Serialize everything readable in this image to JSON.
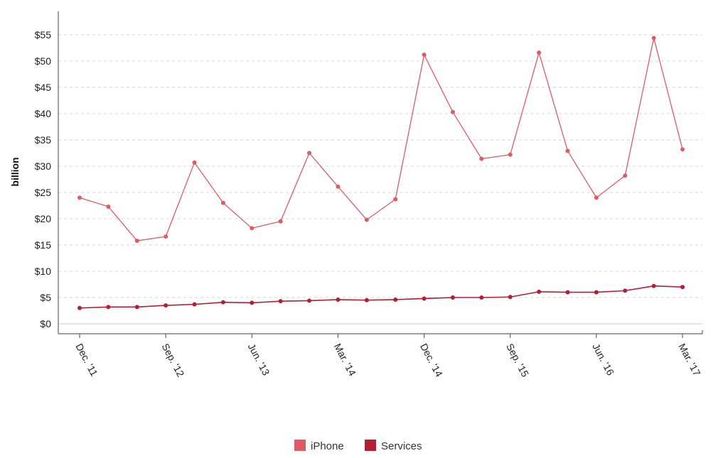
{
  "chart_data": {
    "type": "line",
    "title": "",
    "xlabel": "",
    "ylabel": "billion",
    "ylim": [
      0,
      60
    ],
    "yticks": [
      0,
      5,
      10,
      15,
      20,
      25,
      30,
      35,
      40,
      45,
      50,
      55
    ],
    "ytick_labels": [
      "$0",
      "$5",
      "$10",
      "$15",
      "$20",
      "$25",
      "$30",
      "$35",
      "$40",
      "$45",
      "$50",
      "$55"
    ],
    "grid": true,
    "legend_position": "bottom-center",
    "x": [
      "Dec. '11",
      "Mar. '12",
      "Jun. '12",
      "Sep. '12",
      "Dec. '12",
      "Mar. '13",
      "Jun. '13",
      "Sep. '13",
      "Dec. '13",
      "Mar. '14",
      "Jun. '14",
      "Sep. '14",
      "Dec. '14",
      "Mar. '15",
      "Jun. '15",
      "Sep. '15",
      "Dec. '15",
      "Mar. '16",
      "Jun. '16",
      "Sep. '16",
      "Dec. '16",
      "Mar. '17"
    ],
    "xtick_labels": [
      "Dec. '11",
      "Sep. '12",
      "Jun. '13",
      "Mar. '14",
      "Dec. '14",
      "Sep. '15",
      "Jun. '16",
      "Mar. '17"
    ],
    "series": [
      {
        "name": "iPhone",
        "color": "#e05a66",
        "values": [
          24.0,
          22.3,
          15.8,
          16.6,
          30.7,
          23.0,
          18.2,
          19.5,
          32.5,
          26.1,
          19.8,
          23.7,
          51.2,
          40.3,
          31.4,
          32.2,
          51.6,
          32.9,
          24.0,
          28.2,
          54.4,
          33.2
        ]
      },
      {
        "name": "Services",
        "color": "#b41e34",
        "values": [
          3.0,
          3.2,
          3.2,
          3.5,
          3.7,
          4.1,
          4.0,
          4.3,
          4.4,
          4.6,
          4.5,
          4.6,
          4.8,
          5.0,
          5.0,
          5.1,
          6.1,
          6.0,
          6.0,
          6.3,
          7.2,
          7.0
        ]
      }
    ]
  }
}
